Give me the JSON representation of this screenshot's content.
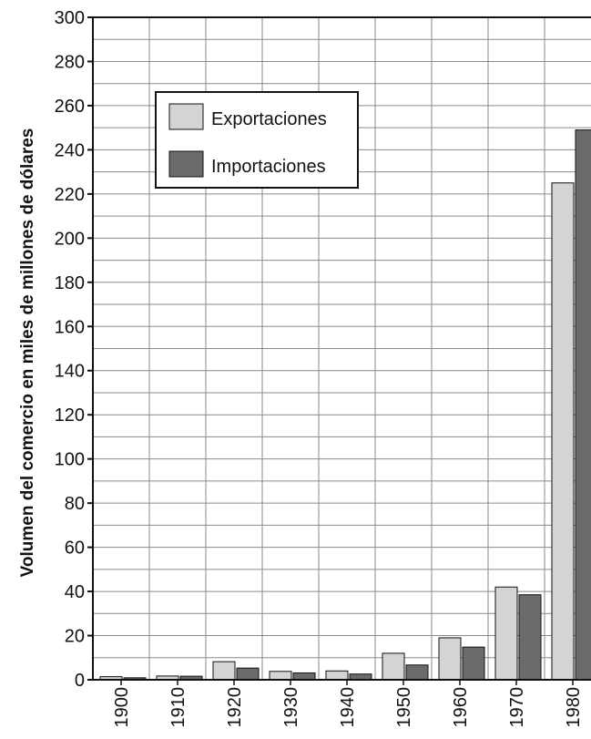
{
  "chart_data": {
    "type": "bar",
    "title": "",
    "xlabel": "",
    "ylabel": "Volumen del comercio en miles de millones de dólares",
    "ylim": [
      0,
      300
    ],
    "y_ticks": [
      0,
      20,
      40,
      60,
      80,
      100,
      120,
      140,
      160,
      180,
      200,
      220,
      240,
      260,
      280,
      300
    ],
    "grid": true,
    "legend_position": "top-left",
    "categories": [
      "1900",
      "1910",
      "1920",
      "1930",
      "1940",
      "1950",
      "1960",
      "1970",
      "1980"
    ],
    "series": [
      {
        "name": "Exportaciones",
        "color": "#d4d4d4",
        "values": [
          1.4,
          1.7,
          8.2,
          3.8,
          4.0,
          12.0,
          19.0,
          42.0,
          225.0
        ]
      },
      {
        "name": "Importaciones",
        "color": "#6b6b6b",
        "values": [
          0.9,
          1.6,
          5.3,
          3.1,
          2.6,
          6.7,
          14.8,
          38.5,
          249.0
        ]
      }
    ]
  }
}
